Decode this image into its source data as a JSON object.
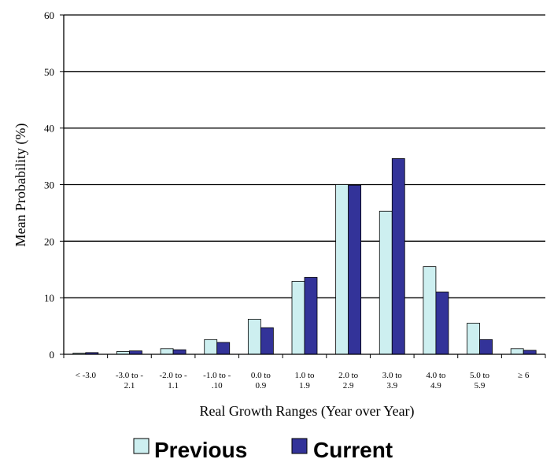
{
  "chart_data": {
    "type": "bar",
    "categories": [
      [
        "< -3.0"
      ],
      [
        "-3.0 to -",
        "2.1"
      ],
      [
        "-2.0 to -",
        "1.1"
      ],
      [
        "-1.0 to -",
        ".10"
      ],
      [
        "0.0 to",
        "0.9"
      ],
      [
        "1.0 to",
        "1.9"
      ],
      [
        "2.0 to",
        "2.9"
      ],
      [
        "3.0 to",
        "3.9"
      ],
      [
        "4.0 to",
        "4.9"
      ],
      [
        "5.0 to",
        "5.9"
      ],
      [
        "≥ 6"
      ]
    ],
    "series": [
      {
        "name": "Previous",
        "color": "#cdeff0",
        "values": [
          0.2,
          0.5,
          1.0,
          2.6,
          6.2,
          12.9,
          30.0,
          25.3,
          15.5,
          5.5,
          1.0
        ]
      },
      {
        "name": "Current",
        "color": "#333399",
        "values": [
          0.3,
          0.6,
          0.8,
          2.1,
          4.7,
          13.6,
          29.9,
          34.6,
          11.0,
          2.6,
          0.7
        ]
      }
    ],
    "ylim": [
      0,
      60
    ],
    "yticks": [
      "0",
      "10",
      "20",
      "30",
      "40",
      "50",
      "60"
    ],
    "xlabel": "Real Growth Ranges (Year over Year)",
    "ylabel": "Mean Probability (%)",
    "grid": true,
    "legend_position": "bottom-center"
  }
}
